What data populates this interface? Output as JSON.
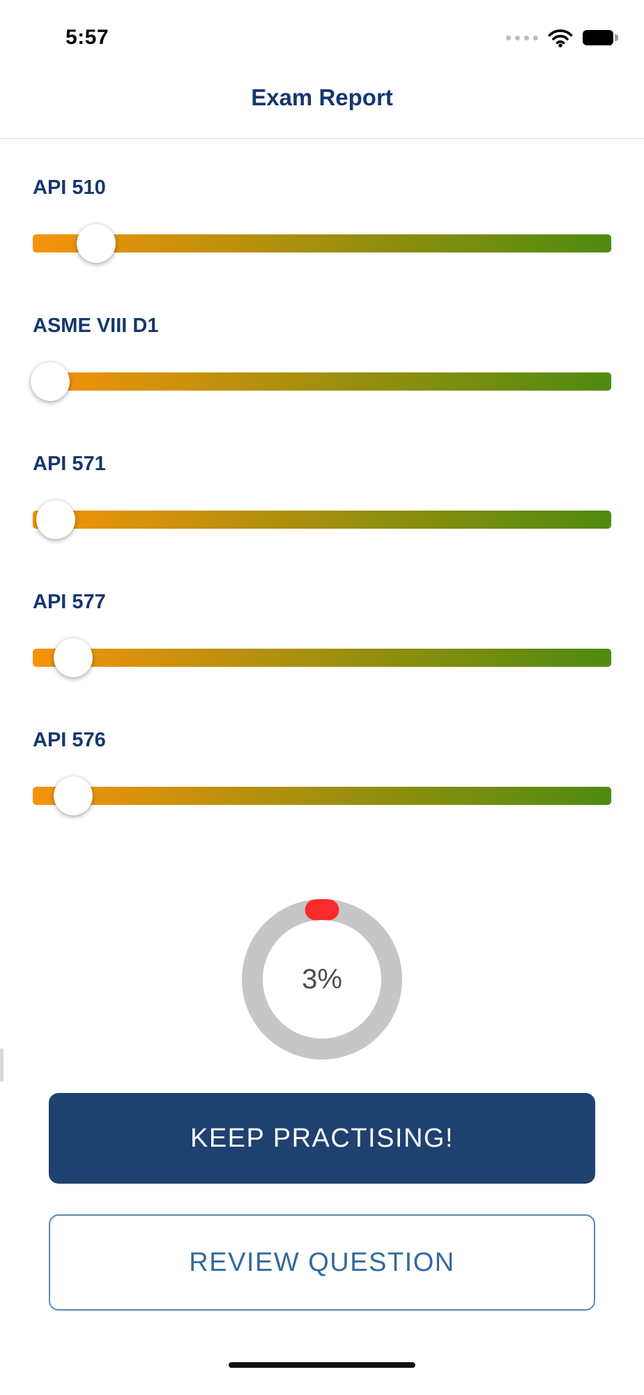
{
  "status_bar": {
    "time": "5:57",
    "icons": [
      "cellular-dots-icon",
      "wifi-icon",
      "battery-full-icon"
    ]
  },
  "header": {
    "title": "Exam Report"
  },
  "sliders": [
    {
      "label": "API 510",
      "value_percent": 11
    },
    {
      "label": "ASME VIII D1",
      "value_percent": 3
    },
    {
      "label": "API 571",
      "value_percent": 4
    },
    {
      "label": "API 577",
      "value_percent": 7
    },
    {
      "label": "API 576",
      "value_percent": 7
    }
  ],
  "chart_data": {
    "type": "pie",
    "variant": "donut",
    "center_label": "3%",
    "value_percent": 3,
    "segments": [
      {
        "name": "score",
        "value": 3,
        "color": "#fb2b2b"
      },
      {
        "name": "remaining",
        "value": 97,
        "color": "#c6c6c6"
      }
    ],
    "legend_position": "none"
  },
  "buttons": {
    "primary": "KEEP PRACTISING!",
    "secondary": "REVIEW QUESTION"
  },
  "colors": {
    "title_navy": "#15376e",
    "primary_button_bg": "#1e4170",
    "primary_button_text": "#ffffff",
    "secondary_button_border": "#5a87b0",
    "secondary_button_text": "#33699f",
    "slider_gradient_start": "#f7930b",
    "slider_gradient_end": "#4e8b10",
    "donut_value": "#fb2b2b",
    "donut_track": "#c6c6c6",
    "donut_label": "#4d4d4d",
    "divider": "#e2e2e2"
  }
}
